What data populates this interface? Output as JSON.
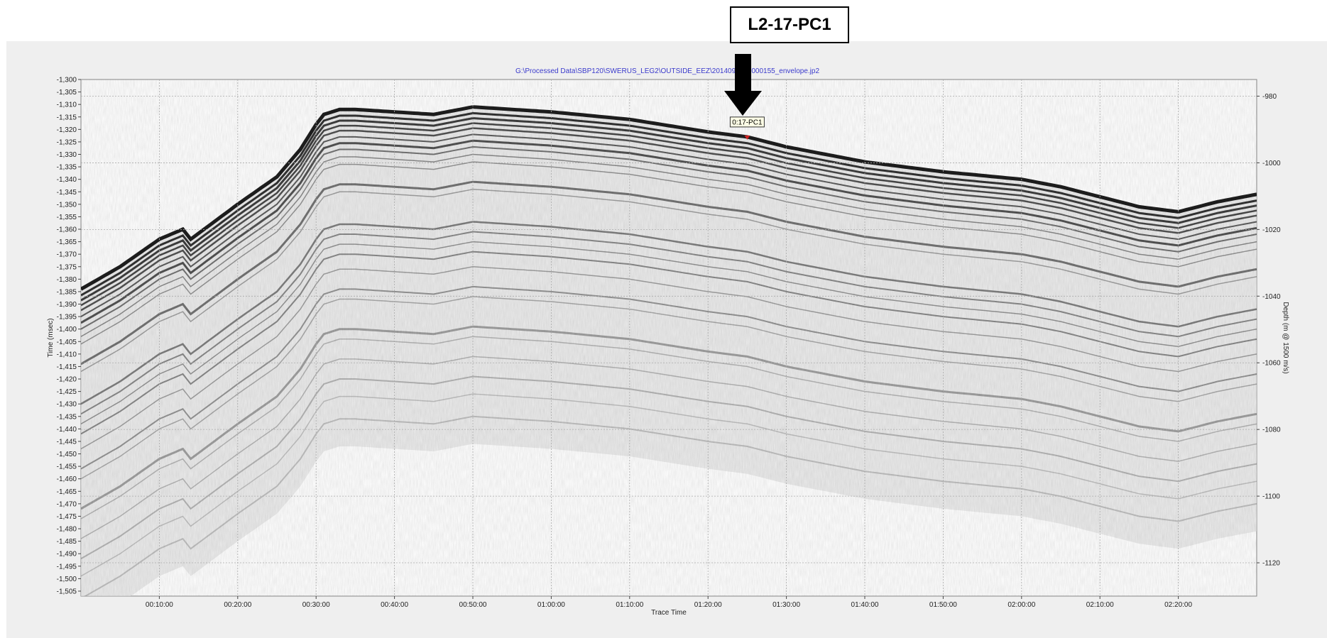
{
  "callout_label": "L2-17-PC1",
  "chart_data": {
    "type": "heatmap",
    "title": "G:\\Processed  Data\\SBP120\\SWERUS_LEG2\\OUTSIDE_EEZ\\20140905\\     5000155_envelope.jp2",
    "xlabel": "Trace Time",
    "ylabel": "Time (msec)",
    "ylabel_right": "Depth (m @ 1500 m/s)",
    "x_range_minutes": [
      0,
      150
    ],
    "x_ticks": [
      "00:10:00",
      "00:20:00",
      "00:30:00",
      "00:40:00",
      "00:50:00",
      "01:00:00",
      "01:10:00",
      "01:20:00",
      "01:30:00",
      "01:40:00",
      "01:50:00",
      "02:00:00",
      "02:10:00",
      "02:20:00"
    ],
    "x_tick_minutes": [
      10,
      20,
      30,
      40,
      50,
      60,
      70,
      80,
      90,
      100,
      110,
      120,
      130,
      140
    ],
    "ylim": [
      -1507,
      -1300
    ],
    "y_ticks": [
      "-1,300",
      "-1,305",
      "-1,310",
      "-1,315",
      "-1,320",
      "-1,325",
      "-1,330",
      "-1,335",
      "-1,340",
      "-1,345",
      "-1,350",
      "-1,355",
      "-1,360",
      "-1,365",
      "-1,370",
      "-1,375",
      "-1,380",
      "-1,385",
      "-1,390",
      "-1,395",
      "-1,400",
      "-1,405",
      "-1,410",
      "-1,415",
      "-1,420",
      "-1,425",
      "-1,430",
      "-1,435",
      "-1,440",
      "-1,445",
      "-1,450",
      "-1,455",
      "-1,460",
      "-1,465",
      "-1,470",
      "-1,475",
      "-1,480",
      "-1,485",
      "-1,490",
      "-1,495",
      "-1,500",
      "-1,505"
    ],
    "y_tick_values": [
      -1300,
      -1305,
      -1310,
      -1315,
      -1320,
      -1325,
      -1330,
      -1335,
      -1340,
      -1345,
      -1350,
      -1355,
      -1360,
      -1365,
      -1370,
      -1375,
      -1380,
      -1385,
      -1390,
      -1395,
      -1400,
      -1405,
      -1410,
      -1415,
      -1420,
      -1425,
      -1430,
      -1435,
      -1440,
      -1445,
      -1450,
      -1455,
      -1460,
      -1465,
      -1470,
      -1475,
      -1480,
      -1485,
      -1490,
      -1495,
      -1500,
      -1505
    ],
    "y_right_ticks": [
      "-980",
      "-1000",
      "-1020",
      "-1040",
      "-1060",
      "-1080",
      "-1100",
      "-1120"
    ],
    "y_right_tick_values": [
      -980,
      -1000,
      -1020,
      -1040,
      -1060,
      -1080,
      -1100,
      -1120
    ],
    "y_right_lim": [
      -975,
      -1130
    ],
    "grid": true,
    "marker": {
      "label": "0:17-PC1",
      "x_minutes": 85,
      "y_msec": -1323
    },
    "seafloor": {
      "x_minutes": [
        0,
        5,
        10,
        13,
        14,
        20,
        25,
        28,
        30,
        31,
        33,
        35,
        40,
        45,
        50,
        55,
        60,
        70,
        80,
        85,
        90,
        100,
        110,
        120,
        125,
        130,
        135,
        140,
        145,
        150
      ],
      "y_msec": [
        -1384,
        -1375,
        -1364,
        -1360,
        -1364,
        -1350,
        -1339,
        -1328,
        -1318,
        -1314,
        -1312,
        -1312,
        -1313,
        -1314,
        -1311,
        -1312,
        -1313,
        -1316,
        -1321,
        -1323,
        -1327,
        -1333,
        -1337,
        -1340,
        -1343,
        -1347,
        -1351,
        -1353,
        -1349,
        -1346
      ]
    }
  }
}
